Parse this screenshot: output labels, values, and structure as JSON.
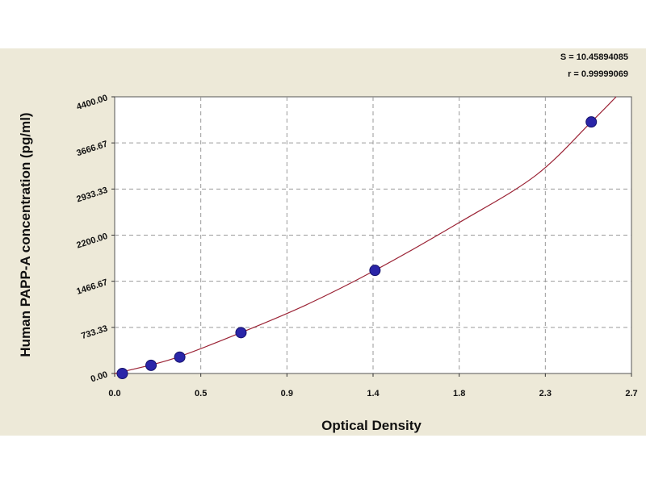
{
  "chart_data": {
    "type": "scatter",
    "title": "",
    "xlabel": "Optical Density",
    "ylabel": "Human PAPP-A concentration (pg/ml)",
    "xlim": [
      0.0,
      2.7
    ],
    "ylim": [
      0,
      4400
    ],
    "x_ticks": [
      "0.0",
      "0.5",
      "0.9",
      "1.4",
      "1.8",
      "2.3",
      "2.7"
    ],
    "y_ticks": [
      "0.00",
      "733.33",
      "1466.67",
      "2200.00",
      "2933.33",
      "3666.67",
      "4400.00"
    ],
    "grid": true,
    "points": [
      {
        "x": 0.04,
        "y": 0
      },
      {
        "x": 0.19,
        "y": 130
      },
      {
        "x": 0.34,
        "y": 260
      },
      {
        "x": 0.66,
        "y": 650
      },
      {
        "x": 1.36,
        "y": 1640
      },
      {
        "x": 2.49,
        "y": 4000
      }
    ],
    "fit_curve": [
      {
        "x": 0.0,
        "y": 0
      },
      {
        "x": 0.3,
        "y": 230
      },
      {
        "x": 0.66,
        "y": 650
      },
      {
        "x": 1.0,
        "y": 1090
      },
      {
        "x": 1.36,
        "y": 1640
      },
      {
        "x": 1.8,
        "y": 2400
      },
      {
        "x": 2.2,
        "y": 3150
      },
      {
        "x": 2.49,
        "y": 4000
      },
      {
        "x": 2.62,
        "y": 4400
      }
    ],
    "colors": {
      "point": "#2a25a8",
      "curve": "#9b2335",
      "grid": "#9a9a9a",
      "plot_bg": "#ffffff",
      "frame_bg": "#ede9d8"
    },
    "stats": {
      "s_text": "S = 10.45894085",
      "r_text": "r = 0.99999069"
    }
  }
}
